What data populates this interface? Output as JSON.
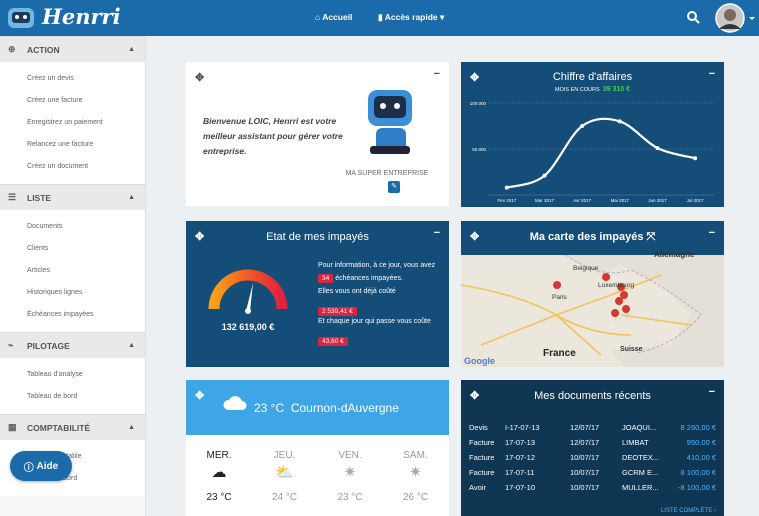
{
  "header": {
    "logo": "Henrri",
    "nav": [
      "Accueil",
      "Accès rapide"
    ]
  },
  "sidebar": [
    {
      "title": "ACTION",
      "items": [
        "Créez un devis",
        "Créez une facture",
        "Enregistrez un paiement",
        "Relancez une facture",
        "Créez un document"
      ]
    },
    {
      "title": "LISTE",
      "items": [
        "Documents",
        "Clients",
        "Articles",
        "Historiques lignes",
        "Échéances impayées"
      ]
    },
    {
      "title": "PILOTAGE",
      "items": [
        "Tableau d'analyse",
        "Tableau de bord"
      ]
    },
    {
      "title": "COMPTABILITÉ",
      "items": [
        "Export comptable",
        "Tableau de bord"
      ]
    }
  ],
  "help_button": "Aide",
  "welcome": {
    "message": "Bienvenue LOIC, Henrri est votre meilleur assistant pour gérer votre entreprise.",
    "company": "MA SUPER ENTREPRISE"
  },
  "revenue_chart": {
    "type": "line",
    "title": "Chiffre d'affaires",
    "subtitle": "MOIS EN COURS",
    "current_value": "39 310 €",
    "categories": [
      "Fev 2017",
      "Mar 2017",
      "Avr 2017",
      "Mai 2017",
      "Jun 2017",
      "Jul 2017"
    ],
    "values": [
      8000,
      21000,
      75000,
      80000,
      51000,
      40000
    ],
    "color": "#ffffff",
    "ylim": [
      0,
      100000
    ],
    "yticks": [
      {
        "value": 50000,
        "label": "50.000"
      },
      {
        "value": 100000,
        "label": "100.000"
      }
    ],
    "grid": true
  },
  "unpaid": {
    "title": "Etat de mes impayés",
    "total": "132 619,00 €",
    "info_before": "Pour information, à ce jour, vous avez",
    "count": "34",
    "info_after": "échéances impayées.",
    "cost_label": "Elles vous ont déjà coûté",
    "cost": "2 539,41 €",
    "daily_label": "Et chaque jour qui passe vous coûte",
    "daily": "43,60 €"
  },
  "map": {
    "title": "Ma carte des impayés",
    "labels": [
      "Allemagne",
      "Belgique",
      "Luxembourg",
      "Paris",
      "France",
      "Suisse"
    ],
    "credit": "Google"
  },
  "weather": {
    "current": "23 °C",
    "city": "Cournon-dAuvergne",
    "days": [
      {
        "day": "MER.",
        "temp": "23 °C"
      },
      {
        "day": "JEU.",
        "temp": "24 °C"
      },
      {
        "day": "VEN.",
        "temp": "23 °C"
      },
      {
        "day": "SAM.",
        "temp": "26 °C"
      }
    ]
  },
  "documents": {
    "title": "Mes documents récents",
    "rows": [
      [
        "Devis",
        "I-17-07-13",
        "12/07/17",
        "JOAQUI...",
        "8 260,00 €"
      ],
      [
        "Facture",
        "17-07-13",
        "12/07/17",
        "LIMBAT",
        "950,00 €"
      ],
      [
        "Facture",
        "17-07-12",
        "10/07/17",
        "DEOTEX...",
        "410,00 €"
      ],
      [
        "Facture",
        "17-07-11",
        "10/07/17",
        "GCRM E...",
        "8 100,00 €"
      ],
      [
        "Avoir",
        "17-07-10",
        "10/07/17",
        "MULLER...",
        "-8 100,00 €"
      ]
    ],
    "link": "LISTE COMPLÈTE"
  }
}
